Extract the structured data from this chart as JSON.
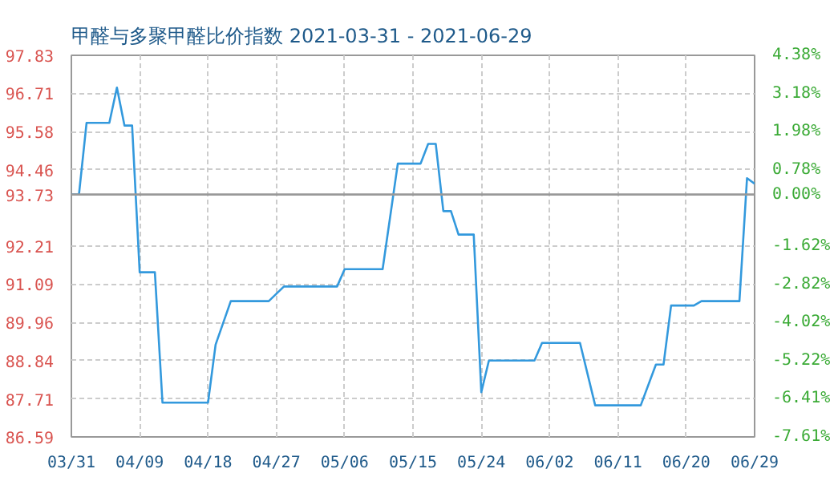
{
  "chart_data": {
    "type": "line",
    "title": "甲醛与多聚甲醛比价指数 2021-03-31 - 2021-06-29",
    "x": [
      "2021-03-31",
      "2021-04-01",
      "2021-04-02",
      "2021-04-05",
      "2021-04-06",
      "2021-04-07",
      "2021-04-08",
      "2021-04-09",
      "2021-04-11",
      "2021-04-12",
      "2021-04-18",
      "2021-04-19",
      "2021-04-21",
      "2021-04-26",
      "2021-04-28",
      "2021-05-05",
      "2021-05-06",
      "2021-05-11",
      "2021-05-13",
      "2021-05-16",
      "2021-05-17",
      "2021-05-18",
      "2021-05-19",
      "2021-05-20",
      "2021-05-21",
      "2021-05-23",
      "2021-05-24",
      "2021-05-25",
      "2021-05-31",
      "2021-06-01",
      "2021-06-06",
      "2021-06-08",
      "2021-06-14",
      "2021-06-16",
      "2021-06-17",
      "2021-06-18",
      "2021-06-21",
      "2021-06-22",
      "2021-06-27",
      "2021-06-28",
      "2021-06-29"
    ],
    "series": [
      {
        "color": "#3399dd",
        "values": [
          93.73,
          93.73,
          95.84,
          95.84,
          96.88,
          95.76,
          95.76,
          91.44,
          91.44,
          87.6,
          87.6,
          89.31,
          90.59,
          90.59,
          91.02,
          91.02,
          91.53,
          91.53,
          94.64,
          94.64,
          95.22,
          95.22,
          93.24,
          93.24,
          92.55,
          92.55,
          87.91,
          88.84,
          88.84,
          89.36,
          89.36,
          87.52,
          87.52,
          88.72,
          88.72,
          90.46,
          90.46,
          90.59,
          90.59,
          94.21,
          94.05
        ]
      }
    ],
    "xlim": [
      "2021-03-31",
      "2021-06-29"
    ],
    "xticks": [
      {
        "value": "2021-03-31",
        "label": "03/31"
      },
      {
        "value": "2021-04-09",
        "label": "04/09"
      },
      {
        "value": "2021-04-18",
        "label": "04/18"
      },
      {
        "value": "2021-04-27",
        "label": "04/27"
      },
      {
        "value": "2021-05-06",
        "label": "05/06"
      },
      {
        "value": "2021-05-15",
        "label": "05/15"
      },
      {
        "value": "2021-05-24",
        "label": "05/24"
      },
      {
        "value": "2021-06-02",
        "label": "06/02"
      },
      {
        "value": "2021-06-11",
        "label": "06/11"
      },
      {
        "value": "2021-06-20",
        "label": "06/20"
      },
      {
        "value": "2021-06-29",
        "label": "06/29"
      }
    ],
    "ylim": [
      86.59,
      97.83
    ],
    "yticks": [
      86.59,
      87.71,
      88.84,
      89.96,
      91.09,
      92.21,
      93.73,
      94.46,
      95.58,
      96.71,
      97.83
    ],
    "y2lim": [
      -7.61,
      4.38
    ],
    "y2ticks": [
      {
        "value": -7.61,
        "label": "-7.61%"
      },
      {
        "value": -6.41,
        "label": "-6.41%"
      },
      {
        "value": -5.22,
        "label": "-5.22%"
      },
      {
        "value": -4.02,
        "label": "-4.02%"
      },
      {
        "value": -2.82,
        "label": "-2.82%"
      },
      {
        "value": -1.62,
        "label": "-1.62%"
      },
      {
        "value": 0,
        "label": "0.00%"
      },
      {
        "value": 0.78,
        "label": "0.78%"
      },
      {
        "value": 1.98,
        "label": "1.98%"
      },
      {
        "value": 3.18,
        "label": "3.18%"
      },
      {
        "value": 4.38,
        "label": "4.38%"
      }
    ],
    "ref_lines": [
      {
        "axis": "y",
        "value": 93.73,
        "color": "#999999"
      }
    ],
    "grid": true,
    "line_style": "solid"
  }
}
